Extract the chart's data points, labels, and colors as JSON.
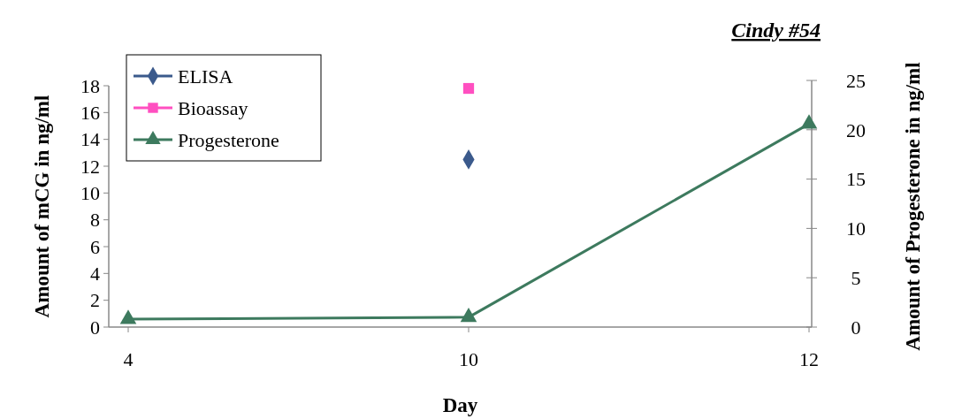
{
  "chart_data": {
    "type": "line",
    "title": "Cindy #54",
    "xlabel": "Day",
    "ylabel": "Amount of mCG in ng/ml",
    "y2label": "Amount of Progesterone in ng/ml",
    "categories": [
      "4",
      "10",
      "12"
    ],
    "series": [
      {
        "name": "ELISA",
        "color": "#3b5a8c",
        "marker": "diamond",
        "values": [
          null,
          12.5,
          null
        ]
      },
      {
        "name": "Bioassay",
        "color": "#ff4fc0",
        "marker": "square",
        "values": [
          null,
          17.8,
          null
        ]
      },
      {
        "name": "Progesterone",
        "color": "#3d7a5e",
        "marker": "triangle",
        "axis": "y2",
        "values": [
          0.8,
          1.0,
          20.6
        ]
      }
    ],
    "ylim": [
      0,
      18
    ],
    "yticks": [
      0,
      2,
      4,
      6,
      8,
      10,
      12,
      14,
      16,
      18
    ],
    "y2lim": [
      0,
      25
    ],
    "y2ticks": [
      0,
      5,
      10,
      15,
      20,
      25
    ],
    "grid": false,
    "legend": "top left"
  }
}
